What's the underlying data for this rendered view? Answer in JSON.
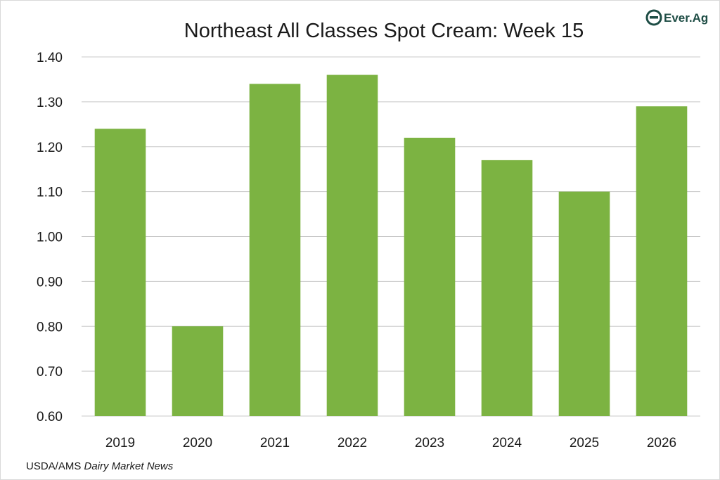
{
  "colors": {
    "bar": "#7cb342",
    "grid": "#c8c8c8",
    "axis_text": "#1a1a1a",
    "logo": "#1e4d45"
  },
  "logo": {
    "text": "Ever.Ag",
    "icon": "ever-ag-e-logo-icon"
  },
  "source": {
    "prefix": "USDA/AMS ",
    "italic": "Dairy Market News"
  },
  "chart_data": {
    "type": "bar",
    "title": "Northeast All Classes Spot Cream: Week 15",
    "xlabel": "",
    "ylabel": "",
    "categories": [
      "2019",
      "2020",
      "2021",
      "2022",
      "2023",
      "2024",
      "2025",
      "2026"
    ],
    "values": [
      1.24,
      0.8,
      1.34,
      1.36,
      1.22,
      1.17,
      1.1,
      1.29
    ],
    "ylim": [
      0.6,
      1.4
    ],
    "yticks": [
      "0.60",
      "0.70",
      "0.80",
      "0.90",
      "1.00",
      "1.10",
      "1.20",
      "1.30",
      "1.40"
    ],
    "grid": true,
    "legend": "none"
  }
}
